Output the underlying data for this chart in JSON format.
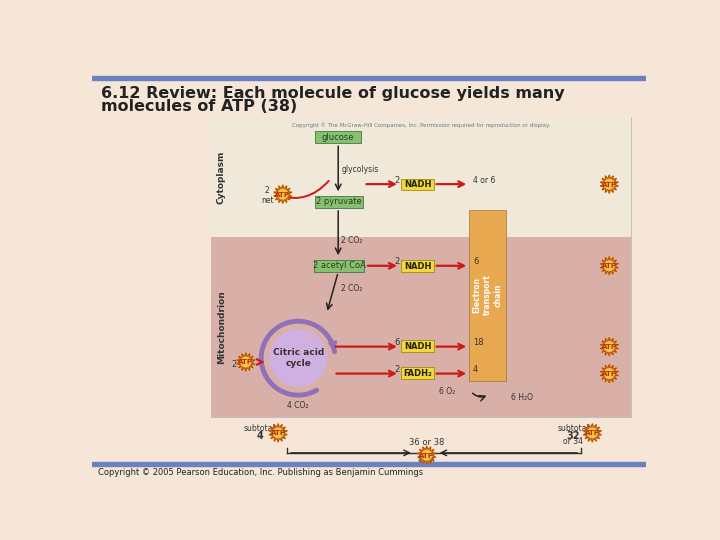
{
  "title_line1": "6.12 Review: Each molecule of glucose yields many",
  "title_line2": "molecules of ATP (38)",
  "copyright_top": "Copyright © The McGraw-Hill Companies, Inc. Permission required for reproduction or display.",
  "copyright_bottom": "Copyright © 2005 Pearson Education, Inc. Publishing as Benjamin Cummings",
  "bg_color": "#f5e6d8",
  "header_bar_color": "#6b82c0",
  "footer_bar_color": "#6b82c0",
  "cytoplasm_color": "#f0e8d8",
  "mitochondrion_color": "#d8b0a8",
  "etc_box_color": "#e8a850",
  "nadh_fadh2_color": "#f0d840",
  "glucose_box_color": "#88c070",
  "atp_burst_outer": "#e87818",
  "atp_burst_inner": "#f8c050",
  "citric_ring_color": "#9070b8",
  "citric_fill_color": "#d0b0e0",
  "arrow_red": "#cc1818",
  "arrow_black": "#222222",
  "diagram_border": "#aaaaaa"
}
